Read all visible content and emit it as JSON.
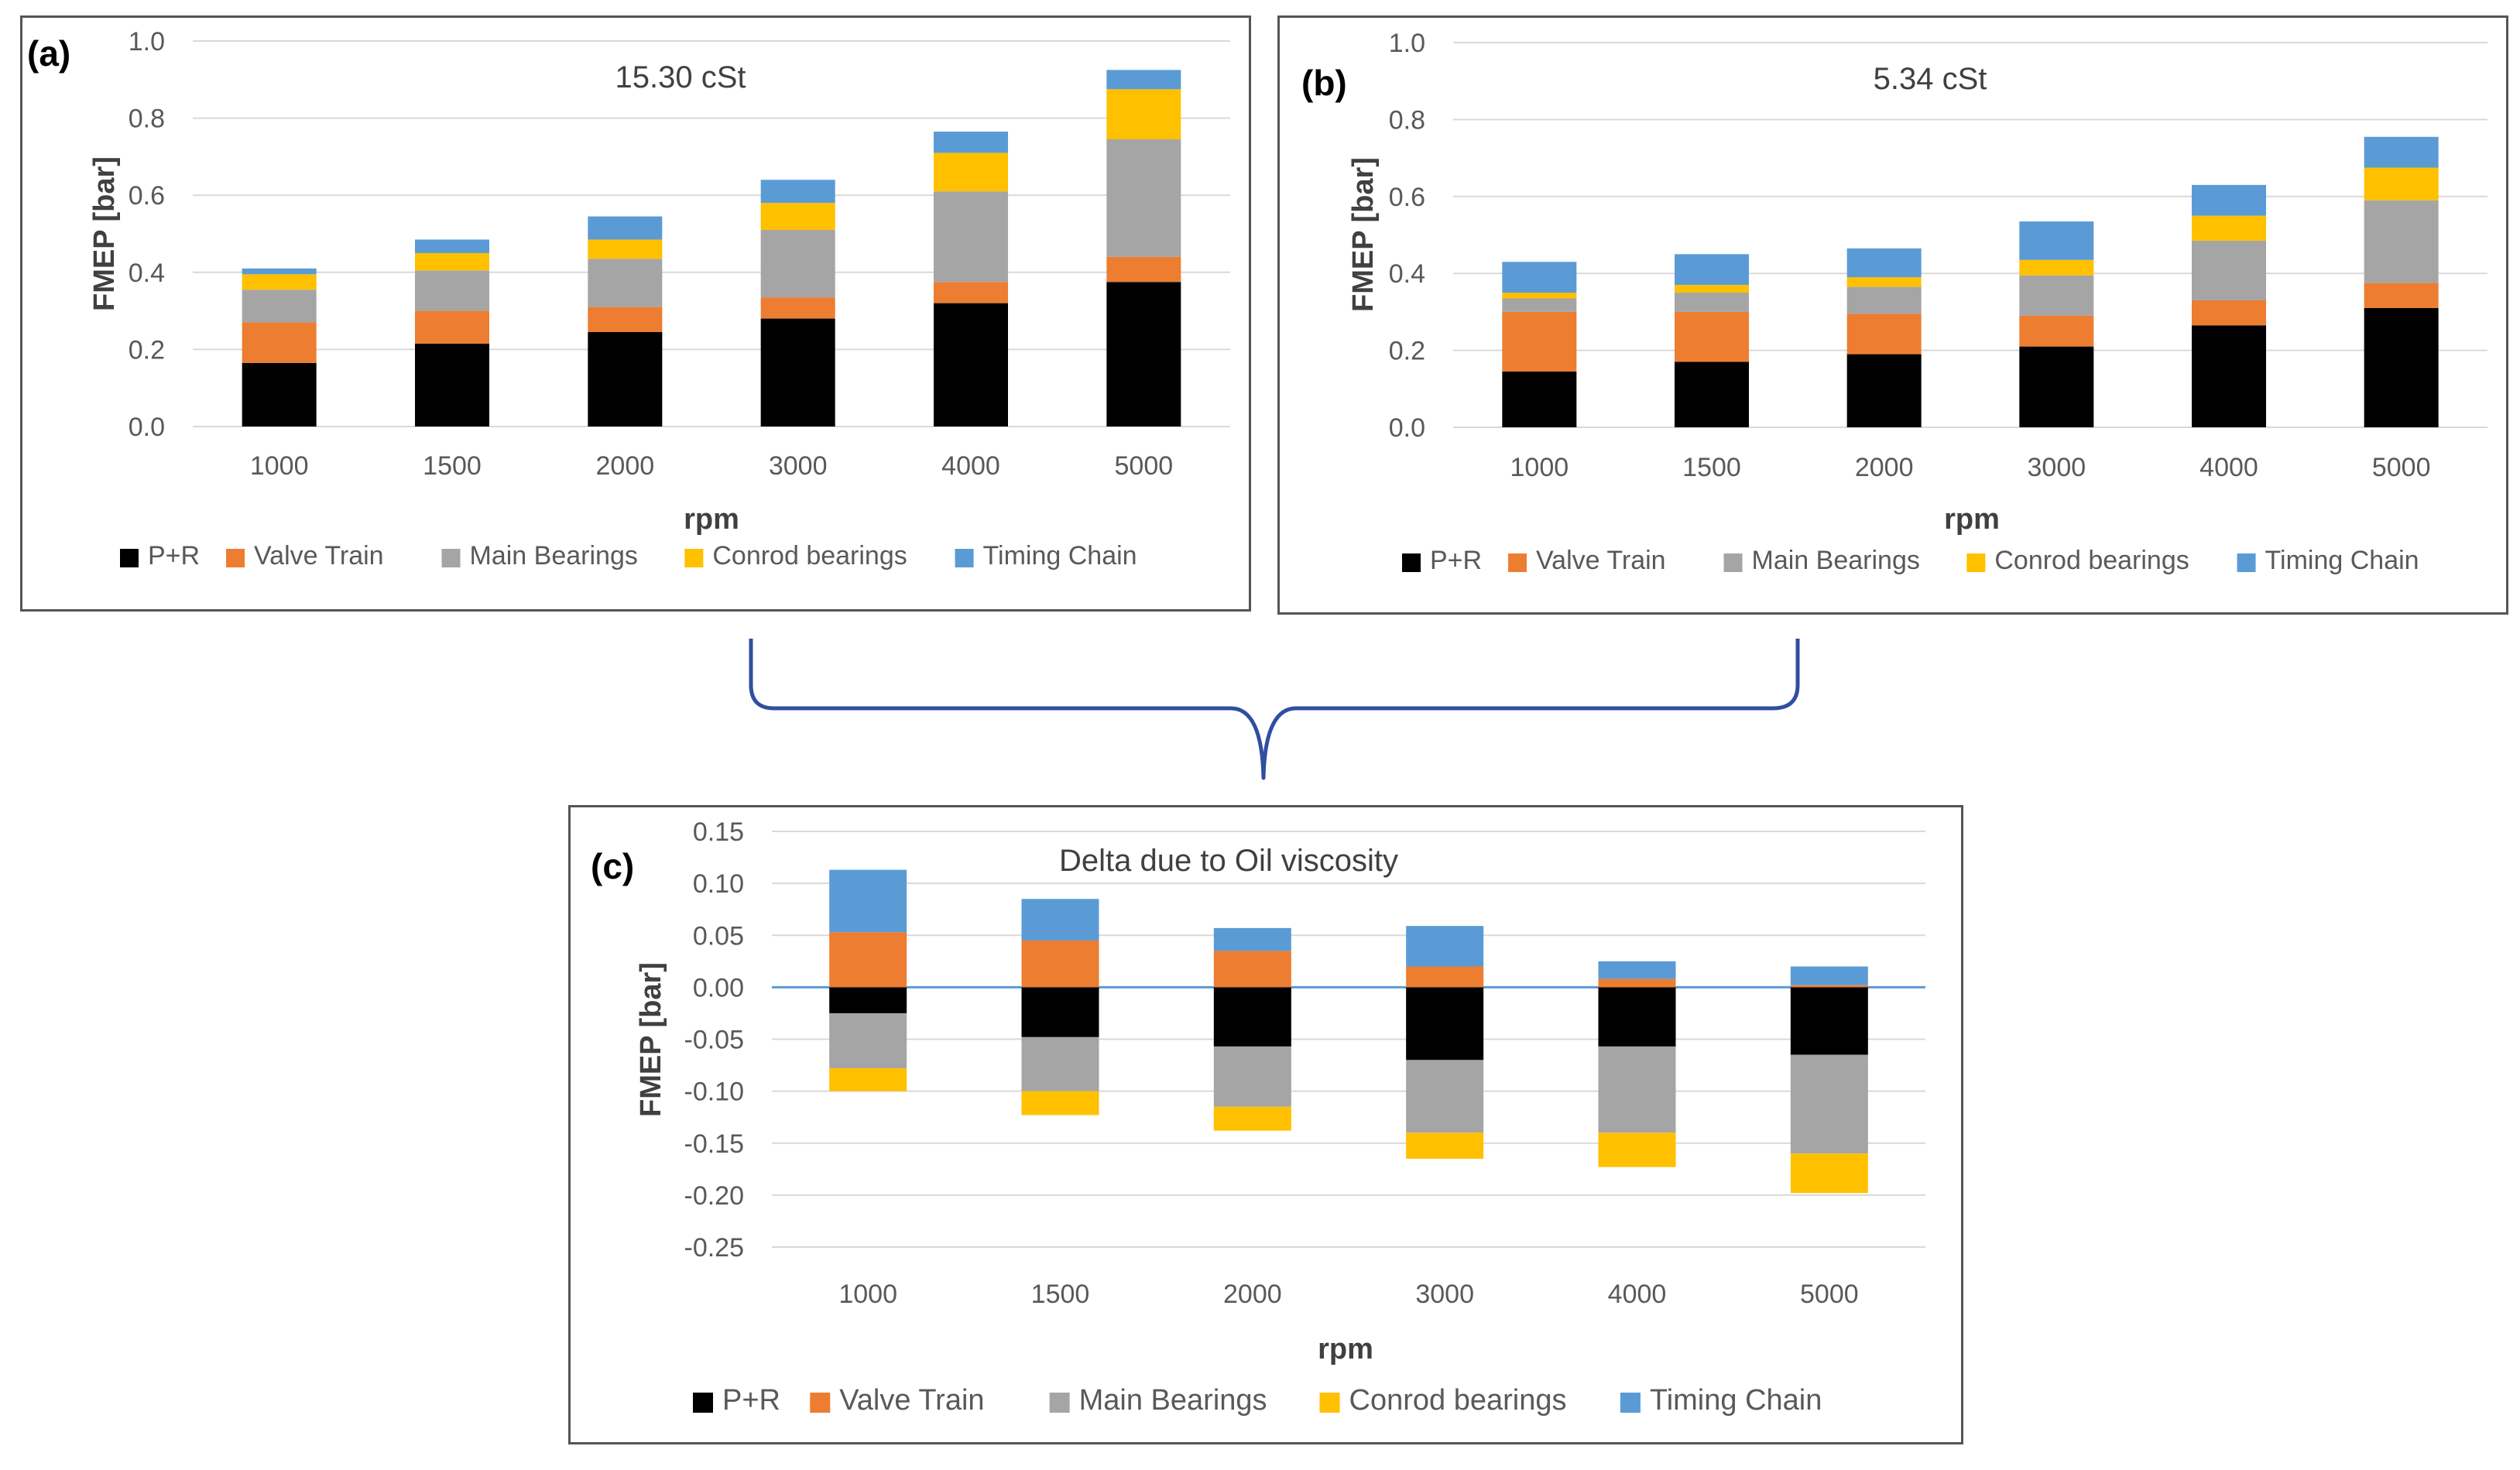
{
  "legend": {
    "items": [
      {
        "name": "P+R",
        "color": "#000000"
      },
      {
        "name": "Valve Train",
        "color": "#ED7D31"
      },
      {
        "name": "Main Bearings",
        "color": "#A5A5A5"
      },
      {
        "name": "Conrod bearings",
        "color": "#FFC000"
      },
      {
        "name": "Timing Chain",
        "color": "#5B9BD5"
      }
    ]
  },
  "chart_data": [
    {
      "id": "a",
      "type": "bar",
      "stacked": true,
      "panel_label": "(a)",
      "title": "15.30 cSt",
      "xlabel": "rpm",
      "ylabel": "FMEP [bar]",
      "ylim": [
        0,
        1.0
      ],
      "yticks": [
        "0.0",
        "0.2",
        "0.4",
        "0.6",
        "0.8",
        "1.0"
      ],
      "categories": [
        "1000",
        "1500",
        "2000",
        "3000",
        "4000",
        "5000"
      ],
      "series": [
        {
          "name": "P+R",
          "color": "#000000",
          "values": [
            0.165,
            0.215,
            0.245,
            0.28,
            0.32,
            0.375
          ]
        },
        {
          "name": "Valve Train",
          "color": "#ED7D31",
          "values": [
            0.105,
            0.085,
            0.065,
            0.055,
            0.055,
            0.065
          ]
        },
        {
          "name": "Main Bearings",
          "color": "#A5A5A5",
          "values": [
            0.085,
            0.105,
            0.125,
            0.175,
            0.235,
            0.305
          ]
        },
        {
          "name": "Conrod bearings",
          "color": "#FFC000",
          "values": [
            0.04,
            0.045,
            0.05,
            0.07,
            0.1,
            0.13
          ]
        },
        {
          "name": "Timing Chain",
          "color": "#5B9BD5",
          "values": [
            0.015,
            0.035,
            0.06,
            0.06,
            0.055,
            0.05
          ]
        }
      ]
    },
    {
      "id": "b",
      "type": "bar",
      "stacked": true,
      "panel_label": "(b)",
      "title": "5.34 cSt",
      "xlabel": "rpm",
      "ylabel": "FMEP [bar]",
      "ylim": [
        0,
        1.0
      ],
      "yticks": [
        "0.0",
        "0.2",
        "0.4",
        "0.6",
        "0.8",
        "1.0"
      ],
      "categories": [
        "1000",
        "1500",
        "2000",
        "3000",
        "4000",
        "5000"
      ],
      "series": [
        {
          "name": "P+R",
          "color": "#000000",
          "values": [
            0.145,
            0.17,
            0.19,
            0.21,
            0.265,
            0.31
          ]
        },
        {
          "name": "Valve Train",
          "color": "#ED7D31",
          "values": [
            0.155,
            0.13,
            0.105,
            0.08,
            0.065,
            0.065
          ]
        },
        {
          "name": "Main Bearings",
          "color": "#A5A5A5",
          "values": [
            0.035,
            0.05,
            0.07,
            0.105,
            0.155,
            0.215
          ]
        },
        {
          "name": "Conrod bearings",
          "color": "#FFC000",
          "values": [
            0.015,
            0.02,
            0.025,
            0.04,
            0.065,
            0.085
          ]
        },
        {
          "name": "Timing Chain",
          "color": "#5B9BD5",
          "values": [
            0.08,
            0.08,
            0.075,
            0.1,
            0.08,
            0.08
          ]
        }
      ]
    },
    {
      "id": "c",
      "type": "bar",
      "stacked": true,
      "panel_label": "(c)",
      "title": "Delta due to Oil viscosity",
      "xlabel": "rpm",
      "ylabel": "FMEP [bar]",
      "ylim": [
        -0.25,
        0.15
      ],
      "yticks": [
        "0.15",
        "0.10",
        "0.05",
        "0.00",
        "-0.05",
        "-0.10",
        "-0.15",
        "-0.20",
        "-0.25"
      ],
      "categories": [
        "1000",
        "1500",
        "2000",
        "3000",
        "4000",
        "5000"
      ],
      "series": [
        {
          "name": "P+R",
          "color": "#000000",
          "values": [
            -0.025,
            -0.048,
            -0.057,
            -0.07,
            -0.057,
            -0.065
          ]
        },
        {
          "name": "Valve Train",
          "color": "#ED7D31",
          "values": [
            0.053,
            0.045,
            0.035,
            0.02,
            0.008,
            0.002
          ]
        },
        {
          "name": "Main Bearings",
          "color": "#A5A5A5",
          "values": [
            -0.053,
            -0.052,
            -0.058,
            -0.07,
            -0.083,
            -0.095
          ]
        },
        {
          "name": "Conrod bearings",
          "color": "#FFC000",
          "values": [
            -0.022,
            -0.023,
            -0.023,
            -0.025,
            -0.033,
            -0.038
          ]
        },
        {
          "name": "Timing Chain",
          "color": "#5B9BD5",
          "values": [
            0.06,
            0.04,
            0.022,
            0.039,
            0.017,
            0.018
          ]
        }
      ]
    }
  ]
}
